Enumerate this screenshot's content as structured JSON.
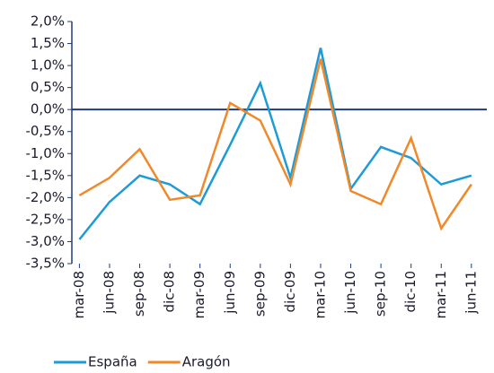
{
  "chart_data": {
    "type": "line",
    "categories": [
      "mar-08",
      "jun-08",
      "sep-08",
      "dic-08",
      "mar-09",
      "jun-09",
      "sep-09",
      "dic-09",
      "mar-10",
      "jun-10",
      "sep-10",
      "dic-10",
      "mar-11",
      "jun-11"
    ],
    "series": [
      {
        "name": "España",
        "color": "#1e9bd7",
        "values": [
          -2.95,
          -2.1,
          -1.5,
          -1.7,
          -2.15,
          -0.8,
          0.6,
          -1.55,
          1.4,
          -1.8,
          -0.85,
          -1.1,
          -1.7,
          -1.5
        ]
      },
      {
        "name": "Aragón",
        "color": "#f0892a",
        "values": [
          -1.95,
          -1.55,
          -0.9,
          -2.05,
          -1.95,
          0.15,
          -0.25,
          -1.7,
          1.15,
          -1.85,
          -2.15,
          -0.65,
          -2.7,
          -1.7
        ]
      }
    ],
    "ylim": [
      -3.5,
      2.0
    ],
    "yticks": [
      {
        "value": 2.0,
        "label": "2,0%"
      },
      {
        "value": 1.5,
        "label": "1,5%"
      },
      {
        "value": 1.0,
        "label": "1,0%"
      },
      {
        "value": 0.5,
        "label": "0,5%"
      },
      {
        "value": 0.0,
        "label": "0,0%"
      },
      {
        "value": -0.5,
        "label": "-0,5%"
      },
      {
        "value": -1.0,
        "label": "-1,0%"
      },
      {
        "value": -1.5,
        "label": "-1,5%"
      },
      {
        "value": -2.0,
        "label": "-2,0%"
      },
      {
        "value": -2.5,
        "label": "-2,5%"
      },
      {
        "value": -3.0,
        "label": "-3,0%"
      },
      {
        "value": -3.5,
        "label": "-3,5%"
      }
    ],
    "legend": "bottom-left"
  }
}
